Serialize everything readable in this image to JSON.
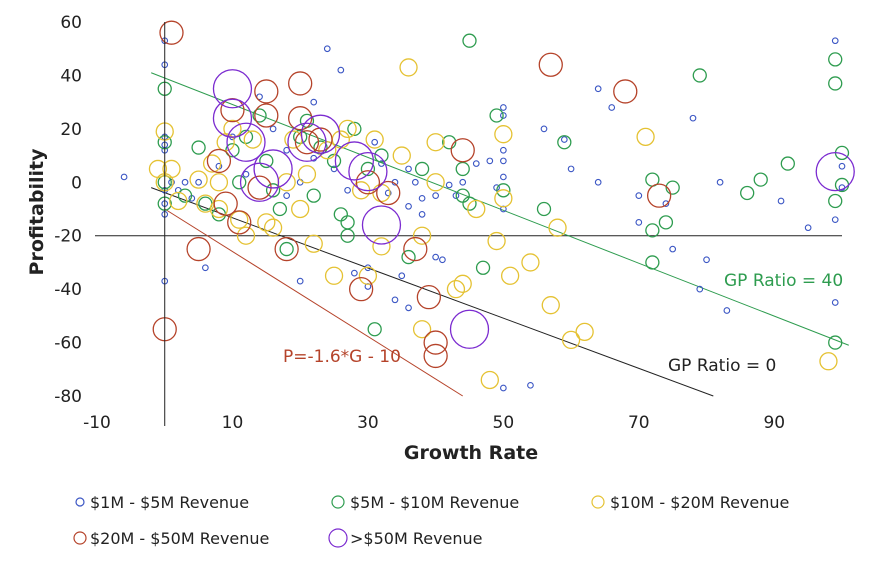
{
  "chart_data": {
    "type": "scatter",
    "title": "",
    "xlabel": "Growth Rate",
    "ylabel": "Profitability",
    "xlim": [
      -10,
      100
    ],
    "ylim": [
      -80,
      60
    ],
    "xticks": [
      -10,
      10,
      30,
      50,
      70,
      90
    ],
    "yticks": [
      -80,
      -60,
      -40,
      -20,
      0,
      20,
      40,
      60
    ],
    "legend": "bottom",
    "series": [
      {
        "name": "$1M - $5M Revenue",
        "color": "#3b56c4",
        "size": "xs",
        "points": [
          [
            -6,
            2
          ],
          [
            0,
            53
          ],
          [
            0,
            44
          ],
          [
            0,
            17
          ],
          [
            0,
            14
          ],
          [
            0,
            12
          ],
          [
            0,
            -3
          ],
          [
            0,
            -8
          ],
          [
            0,
            -12
          ],
          [
            0,
            -37
          ],
          [
            1,
            0
          ],
          [
            2,
            -3
          ],
          [
            3,
            0
          ],
          [
            4,
            -6
          ],
          [
            5,
            0
          ],
          [
            6,
            -32
          ],
          [
            8,
            6
          ],
          [
            10,
            17
          ],
          [
            12,
            3
          ],
          [
            14,
            32
          ],
          [
            16,
            20
          ],
          [
            18,
            12
          ],
          [
            18,
            -5
          ],
          [
            20,
            0
          ],
          [
            20,
            -37
          ],
          [
            22,
            30
          ],
          [
            22,
            9
          ],
          [
            24,
            50
          ],
          [
            25,
            5
          ],
          [
            26,
            42
          ],
          [
            27,
            -3
          ],
          [
            28,
            -34
          ],
          [
            30,
            -32
          ],
          [
            30,
            -39
          ],
          [
            31,
            15
          ],
          [
            32,
            7
          ],
          [
            33,
            -4
          ],
          [
            34,
            0
          ],
          [
            34,
            -44
          ],
          [
            35,
            -35
          ],
          [
            36,
            5
          ],
          [
            36,
            -9
          ],
          [
            36,
            -47
          ],
          [
            37,
            0
          ],
          [
            38,
            -6
          ],
          [
            38,
            -12
          ],
          [
            40,
            -5
          ],
          [
            40,
            -28
          ],
          [
            41,
            -29
          ],
          [
            42,
            -1
          ],
          [
            43,
            -5
          ],
          [
            44,
            0
          ],
          [
            46,
            7
          ],
          [
            48,
            8
          ],
          [
            49,
            -2
          ],
          [
            50,
            28
          ],
          [
            50,
            25
          ],
          [
            50,
            12
          ],
          [
            50,
            8
          ],
          [
            50,
            2
          ],
          [
            50,
            -10
          ],
          [
            50,
            -77
          ],
          [
            54,
            -76
          ],
          [
            56,
            20
          ],
          [
            59,
            16
          ],
          [
            60,
            5
          ],
          [
            64,
            0
          ],
          [
            64,
            35
          ],
          [
            66,
            28
          ],
          [
            70,
            -5
          ],
          [
            70,
            -15
          ],
          [
            74,
            -8
          ],
          [
            75,
            -25
          ],
          [
            78,
            24
          ],
          [
            79,
            -40
          ],
          [
            80,
            -29
          ],
          [
            82,
            0
          ],
          [
            83,
            -48
          ],
          [
            91,
            -7
          ],
          [
            95,
            -17
          ],
          [
            99,
            53
          ],
          [
            99,
            -14
          ],
          [
            99,
            -45
          ],
          [
            100,
            6
          ],
          [
            100,
            -2
          ]
        ]
      },
      {
        "name": "$5M - $10M Revenue",
        "color": "#2e9c4f",
        "size": "s",
        "points": [
          [
            0,
            35
          ],
          [
            0,
            15
          ],
          [
            0,
            0
          ],
          [
            0,
            -8
          ],
          [
            3,
            -5
          ],
          [
            5,
            13
          ],
          [
            6,
            -8
          ],
          [
            8,
            -12
          ],
          [
            10,
            12
          ],
          [
            11,
            0
          ],
          [
            12,
            17
          ],
          [
            14,
            25
          ],
          [
            15,
            8
          ],
          [
            16,
            -3
          ],
          [
            17,
            -10
          ],
          [
            18,
            -25
          ],
          [
            20,
            17
          ],
          [
            21,
            23
          ],
          [
            22,
            -5
          ],
          [
            23,
            13
          ],
          [
            25,
            8
          ],
          [
            26,
            -12
          ],
          [
            27,
            -15
          ],
          [
            27,
            -20
          ],
          [
            28,
            20
          ],
          [
            30,
            5
          ],
          [
            31,
            -55
          ],
          [
            32,
            10
          ],
          [
            36,
            -28
          ],
          [
            38,
            5
          ],
          [
            42,
            15
          ],
          [
            44,
            5
          ],
          [
            44,
            -5
          ],
          [
            45,
            53
          ],
          [
            45,
            -8
          ],
          [
            47,
            -32
          ],
          [
            49,
            25
          ],
          [
            50,
            -3
          ],
          [
            56,
            -10
          ],
          [
            59,
            15
          ],
          [
            72,
            1
          ],
          [
            72,
            -18
          ],
          [
            72,
            -30
          ],
          [
            74,
            -15
          ],
          [
            75,
            -2
          ],
          [
            79,
            40
          ],
          [
            86,
            -4
          ],
          [
            88,
            1
          ],
          [
            92,
            7
          ],
          [
            99,
            46
          ],
          [
            99,
            37
          ],
          [
            99,
            -7
          ],
          [
            99,
            -60
          ],
          [
            100,
            11
          ],
          [
            100,
            -1
          ]
        ]
      },
      {
        "name": "$10M - $20M Revenue",
        "color": "#e5c233",
        "size": "m",
        "points": [
          [
            -1,
            5
          ],
          [
            0,
            19
          ],
          [
            0,
            0
          ],
          [
            1,
            5
          ],
          [
            2,
            -7
          ],
          [
            5,
            1
          ],
          [
            6,
            -8
          ],
          [
            7,
            7
          ],
          [
            8,
            0
          ],
          [
            8,
            -10
          ],
          [
            9,
            15
          ],
          [
            10,
            20
          ],
          [
            11,
            -14
          ],
          [
            12,
            -20
          ],
          [
            13,
            16
          ],
          [
            15,
            -15
          ],
          [
            16,
            -17
          ],
          [
            18,
            0
          ],
          [
            19,
            16
          ],
          [
            20,
            -10
          ],
          [
            21,
            3
          ],
          [
            22,
            -23
          ],
          [
            24,
            12
          ],
          [
            25,
            -35
          ],
          [
            26,
            16
          ],
          [
            27,
            20
          ],
          [
            29,
            -3
          ],
          [
            30,
            -35
          ],
          [
            31,
            16
          ],
          [
            32,
            -4
          ],
          [
            32,
            -24
          ],
          [
            35,
            10
          ],
          [
            36,
            43
          ],
          [
            38,
            -20
          ],
          [
            38,
            -55
          ],
          [
            40,
            15
          ],
          [
            40,
            0
          ],
          [
            43,
            -40
          ],
          [
            44,
            -38
          ],
          [
            46,
            -10
          ],
          [
            48,
            -74
          ],
          [
            49,
            -22
          ],
          [
            50,
            18
          ],
          [
            50,
            -6
          ],
          [
            51,
            -35
          ],
          [
            54,
            -30
          ],
          [
            57,
            -46
          ],
          [
            58,
            -17
          ],
          [
            60,
            -59
          ],
          [
            62,
            -56
          ],
          [
            71,
            17
          ],
          [
            98,
            -67
          ]
        ]
      },
      {
        "name": "$20M - $50M Revenue",
        "color": "#b5432a",
        "size": "l",
        "points": [
          [
            0,
            -55
          ],
          [
            1,
            56
          ],
          [
            5,
            -25
          ],
          [
            8,
            8
          ],
          [
            9,
            -8
          ],
          [
            10,
            27
          ],
          [
            11,
            -15
          ],
          [
            14,
            -2
          ],
          [
            15,
            34
          ],
          [
            15,
            25
          ],
          [
            18,
            -25
          ],
          [
            20,
            37
          ],
          [
            20,
            24
          ],
          [
            21,
            15
          ],
          [
            23,
            16
          ],
          [
            29,
            -40
          ],
          [
            30,
            0
          ],
          [
            33,
            -4
          ],
          [
            37,
            -25
          ],
          [
            39,
            -43
          ],
          [
            40,
            -60
          ],
          [
            40,
            -65
          ],
          [
            44,
            12
          ],
          [
            57,
            44
          ],
          [
            68,
            34
          ],
          [
            73,
            -5
          ]
        ]
      },
      {
        "name": ">$50M Revenue",
        "color": "#7b2bd0",
        "size": "xl",
        "points": [
          [
            10,
            35
          ],
          [
            10,
            24
          ],
          [
            12,
            15
          ],
          [
            14,
            0
          ],
          [
            16,
            5
          ],
          [
            21,
            15
          ],
          [
            23,
            18
          ],
          [
            28,
            8
          ],
          [
            30,
            4
          ],
          [
            32,
            -16
          ],
          [
            45,
            -55
          ],
          [
            99,
            4
          ]
        ]
      }
    ],
    "annotations": [
      {
        "text": "GP Ratio = 40",
        "color": "#2e9c4f",
        "line": {
          "x1": -2,
          "y1": 41,
          "x2": 101,
          "y2": -61
        }
      },
      {
        "text": "GP Ratio = 0",
        "color": "#222222",
        "line": {
          "x1": -2,
          "y1": -2,
          "x2": 81,
          "y2": -80
        }
      },
      {
        "text": "P=-1.6*G - 10",
        "color": "#b5432a",
        "line": {
          "x1": 0,
          "y1": -10,
          "x2": 44,
          "y2": -80
        }
      }
    ]
  }
}
